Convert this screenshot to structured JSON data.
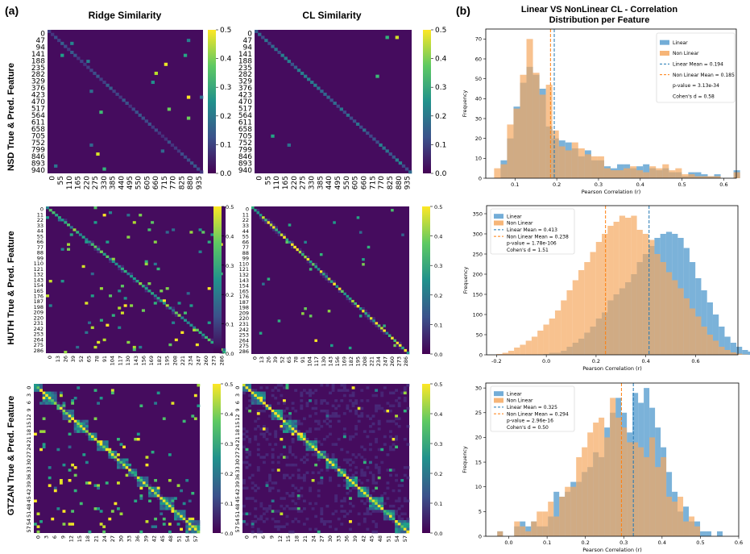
{
  "panel_labels": {
    "a": "(a)",
    "b": "(b)"
  },
  "column_titles": {
    "ridge": "Ridge Similarity",
    "cl": "CL Similarity"
  },
  "hist_title": {
    "line1": "Linear VS NonLinear CL - Correlation",
    "line2": "Distribution per Feature"
  },
  "row_labels": [
    "NSD True & Pred. Feature",
    "HUTH True & Pred. Feature",
    "GTZAN True & Pred. Feature"
  ],
  "colors": {
    "linear": "#5a9fd0",
    "nonlinear": "#f5a860",
    "overlap": "#a69a84",
    "linear_mean": "#1f77b4",
    "nonlinear_mean": "#ff7f0e"
  },
  "colorbar_ticks": [
    "0.0",
    "0.1",
    "0.2",
    "0.3",
    "0.4",
    "0.5"
  ],
  "chart_data": [
    {
      "type": "heatmap",
      "name": "NSD Ridge Similarity",
      "colormap": "viridis",
      "vmin": 0,
      "vmax": 0.5,
      "y_ticks": [
        "0",
        "47",
        "94",
        "141",
        "188",
        "235",
        "282",
        "329",
        "376",
        "423",
        "470",
        "517",
        "564",
        "611",
        "658",
        "705",
        "752",
        "799",
        "846",
        "893",
        "940"
      ],
      "x_ticks": [
        "0",
        "55",
        "110",
        "165",
        "220",
        "275",
        "330",
        "385",
        "440",
        "495",
        "550",
        "605",
        "660",
        "715",
        "770",
        "825",
        "880",
        "935"
      ]
    },
    {
      "type": "heatmap",
      "name": "NSD CL Similarity",
      "colormap": "viridis",
      "vmin": 0,
      "vmax": 0.5,
      "y_ticks": [
        "0",
        "47",
        "94",
        "141",
        "188",
        "235",
        "282",
        "329",
        "376",
        "423",
        "470",
        "517",
        "564",
        "611",
        "658",
        "705",
        "752",
        "799",
        "846",
        "893",
        "940"
      ],
      "x_ticks": [
        "0",
        "55",
        "110",
        "165",
        "220",
        "275",
        "330",
        "385",
        "440",
        "495",
        "550",
        "605",
        "660",
        "715",
        "770",
        "825",
        "880",
        "935"
      ]
    },
    {
      "type": "heatmap",
      "name": "HUTH Ridge Similarity",
      "colormap": "viridis",
      "vmin": 0,
      "vmax": 0.5,
      "y_ticks": [
        "0",
        "11",
        "22",
        "33",
        "44",
        "55",
        "66",
        "77",
        "88",
        "99",
        "110",
        "121",
        "132",
        "143",
        "154",
        "165",
        "176",
        "187",
        "198",
        "209",
        "220",
        "231",
        "242",
        "253",
        "264",
        "275",
        "286"
      ],
      "x_ticks": [
        "0",
        "13",
        "26",
        "39",
        "52",
        "65",
        "78",
        "91",
        "104",
        "117",
        "130",
        "143",
        "156",
        "169",
        "182",
        "195",
        "208",
        "221",
        "234",
        "247",
        "260",
        "273",
        "286"
      ]
    },
    {
      "type": "heatmap",
      "name": "HUTH CL Similarity",
      "colormap": "viridis",
      "vmin": 0,
      "vmax": 0.5,
      "y_ticks": [
        "0",
        "11",
        "22",
        "33",
        "44",
        "55",
        "66",
        "77",
        "88",
        "99",
        "110",
        "121",
        "132",
        "143",
        "154",
        "165",
        "176",
        "187",
        "198",
        "209",
        "220",
        "231",
        "242",
        "253",
        "264",
        "275",
        "286"
      ],
      "x_ticks": [
        "0",
        "13",
        "26",
        "39",
        "52",
        "65",
        "78",
        "91",
        "104",
        "117",
        "130",
        "143",
        "156",
        "169",
        "182",
        "195",
        "208",
        "221",
        "234",
        "247",
        "260",
        "273",
        "286"
      ]
    },
    {
      "type": "heatmap",
      "name": "GTZAN Ridge Similarity",
      "colormap": "viridis",
      "vmin": 0,
      "vmax": 0.5,
      "y_ticks": [
        "0",
        "3",
        "6",
        "9",
        "12",
        "15",
        "18",
        "21",
        "24",
        "27",
        "30",
        "33",
        "36",
        "39",
        "42",
        "45",
        "48",
        "51",
        "54",
        "57"
      ],
      "x_ticks": [
        "0",
        "3",
        "6",
        "9",
        "12",
        "15",
        "18",
        "21",
        "24",
        "27",
        "30",
        "33",
        "36",
        "39",
        "42",
        "45",
        "48",
        "51",
        "54",
        "57"
      ]
    },
    {
      "type": "heatmap",
      "name": "GTZAN CL Similarity",
      "colormap": "viridis",
      "vmin": 0,
      "vmax": 0.5,
      "y_ticks": [
        "0",
        "3",
        "6",
        "9",
        "12",
        "15",
        "18",
        "21",
        "24",
        "27",
        "30",
        "33",
        "36",
        "39",
        "42",
        "45",
        "48",
        "51",
        "54",
        "57"
      ],
      "x_ticks": [
        "0",
        "3",
        "6",
        "9",
        "12",
        "15",
        "18",
        "21",
        "24",
        "27",
        "30",
        "33",
        "36",
        "39",
        "42",
        "45",
        "48",
        "51",
        "54",
        "57"
      ]
    },
    {
      "type": "bar",
      "subtype": "histogram",
      "name": "NSD correlation histogram",
      "xlabel": "Pearson Correlation (r)",
      "ylabel": "Frequency",
      "xlim": [
        0.03,
        0.63
      ],
      "ylim": [
        0,
        75
      ],
      "x_ticks": [
        0.1,
        0.2,
        0.3,
        0.4,
        0.5,
        0.6
      ],
      "y_ticks": [
        0,
        10,
        20,
        30,
        40,
        50,
        60,
        70
      ],
      "bin_start": 0.05,
      "bin_width": 0.0155,
      "series": [
        {
          "name": "Linear",
          "values": [
            0,
            9,
            20,
            36,
            48,
            56,
            52,
            45,
            26,
            20,
            19,
            18,
            15,
            11,
            14,
            9,
            9,
            6,
            5,
            7,
            7,
            5,
            6,
            7,
            5,
            4,
            5,
            3,
            3,
            1,
            3,
            3,
            2,
            1,
            2,
            0,
            0,
            4
          ]
        },
        {
          "name": "Non Linear",
          "values": [
            5,
            7,
            27,
            35,
            52,
            70,
            53,
            42,
            47,
            24,
            16,
            14,
            18,
            15,
            12,
            11,
            11,
            5,
            4,
            4,
            5,
            6,
            4,
            3,
            6,
            5,
            7,
            4,
            5,
            2,
            2,
            1,
            1,
            1,
            1,
            0,
            0,
            3
          ]
        }
      ],
      "legend": [
        "Linear",
        "Non Linear",
        "Linear Mean = 0.194",
        "Non Linear Mean = 0.185",
        "p-value = 3.13e-34",
        "Cohen's d = 0.58"
      ],
      "means": {
        "linear": 0.194,
        "nonlinear": 0.185
      }
    },
    {
      "type": "bar",
      "subtype": "histogram",
      "name": "HUTH correlation histogram",
      "xlabel": "Pearson Correlation (r)",
      "ylabel": "Frequency",
      "xlim": [
        -0.24,
        0.77
      ],
      "ylim": [
        0,
        370
      ],
      "x_ticks": [
        -0.2,
        0.0,
        0.2,
        0.4,
        0.6
      ],
      "y_ticks": [
        0,
        50,
        100,
        150,
        200,
        250,
        300,
        350
      ],
      "bin_start": -0.2,
      "bin_width": 0.0235,
      "series": [
        {
          "name": "Linear",
          "values": [
            0,
            0,
            0,
            0,
            0,
            0,
            0,
            0,
            2,
            5,
            5,
            10,
            20,
            30,
            40,
            55,
            70,
            90,
            105,
            135,
            150,
            165,
            180,
            200,
            230,
            250,
            270,
            290,
            300,
            305,
            300,
            290,
            265,
            230,
            190,
            160,
            130,
            100,
            70,
            45,
            30,
            20,
            12,
            8
          ]
        },
        {
          "name": "Non Linear",
          "values": [
            2,
            5,
            10,
            18,
            25,
            35,
            45,
            60,
            75,
            90,
            110,
            135,
            160,
            185,
            210,
            230,
            255,
            280,
            300,
            320,
            330,
            345,
            340,
            345,
            310,
            300,
            285,
            250,
            230,
            205,
            185,
            165,
            140,
            115,
            95,
            70,
            50,
            35,
            20,
            12,
            6,
            3,
            1,
            0
          ]
        }
      ],
      "legend": [
        "Linear",
        "Non Linear",
        "Linear Mean = 0.413",
        "Non Linear Mean = 0.238",
        "p-value = 1.78e-106",
        "Cohen's d = 1.51"
      ],
      "means": {
        "linear": 0.413,
        "nonlinear": 0.238
      }
    },
    {
      "type": "bar",
      "subtype": "histogram",
      "name": "GTZAN correlation histogram",
      "xlabel": "Pearson Correlation (r)",
      "ylabel": "Frequency",
      "xlim": [
        -0.06,
        0.6
      ],
      "ylim": [
        0,
        31
      ],
      "x_ticks": [
        0.0,
        0.1,
        0.2,
        0.3,
        0.4,
        0.5,
        0.6
      ],
      "y_ticks": [
        0,
        5,
        10,
        15,
        20,
        25,
        30
      ],
      "bin_start": -0.03,
      "bin_width": 0.0147,
      "series": [
        {
          "name": "Linear",
          "values": [
            1,
            0,
            0,
            2,
            3,
            2,
            3,
            2,
            2,
            4,
            9,
            8,
            9,
            11,
            11,
            13,
            14,
            17,
            16,
            22,
            25,
            28,
            25,
            21,
            29,
            27,
            30,
            26,
            22,
            18,
            13,
            9,
            5,
            6,
            3,
            3,
            1,
            1,
            0,
            1
          ]
        },
        {
          "name": "Non Linear",
          "values": [
            1,
            0,
            0,
            3,
            2,
            1,
            3,
            5,
            5,
            7,
            4,
            8,
            10,
            10,
            16,
            18,
            21,
            23,
            24,
            20,
            28,
            24,
            22,
            19,
            19,
            18,
            16,
            20,
            14,
            16,
            8,
            7,
            8,
            3,
            4,
            2,
            0,
            0,
            0,
            0
          ]
        }
      ],
      "legend": [
        "Linear",
        "Non Linear",
        "Linear Mean = 0.325",
        "Non Linear Mean = 0.294",
        "p-value = 2.96e-16",
        "Cohen's d = 0.50"
      ],
      "means": {
        "linear": 0.325,
        "nonlinear": 0.294
      }
    }
  ]
}
